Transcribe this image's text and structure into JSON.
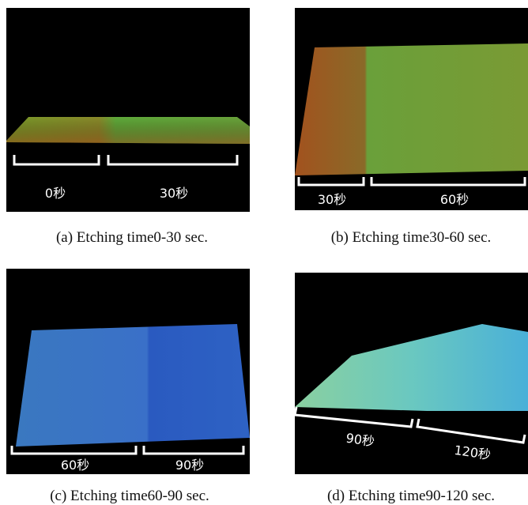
{
  "panels": [
    {
      "caption": "(a) Etching time0-30 sec.",
      "labels": [
        "0秒",
        "30秒"
      ]
    },
    {
      "caption": "(b) Etching time30-60 sec.",
      "labels": [
        "30秒",
        "60秒"
      ]
    },
    {
      "caption": "(c) Etching time60-90 sec.",
      "labels": [
        "60秒",
        "90秒"
      ]
    },
    {
      "caption": "(d) Etching time90-120 sec.",
      "labels": [
        "90秒",
        "120秒"
      ]
    }
  ]
}
